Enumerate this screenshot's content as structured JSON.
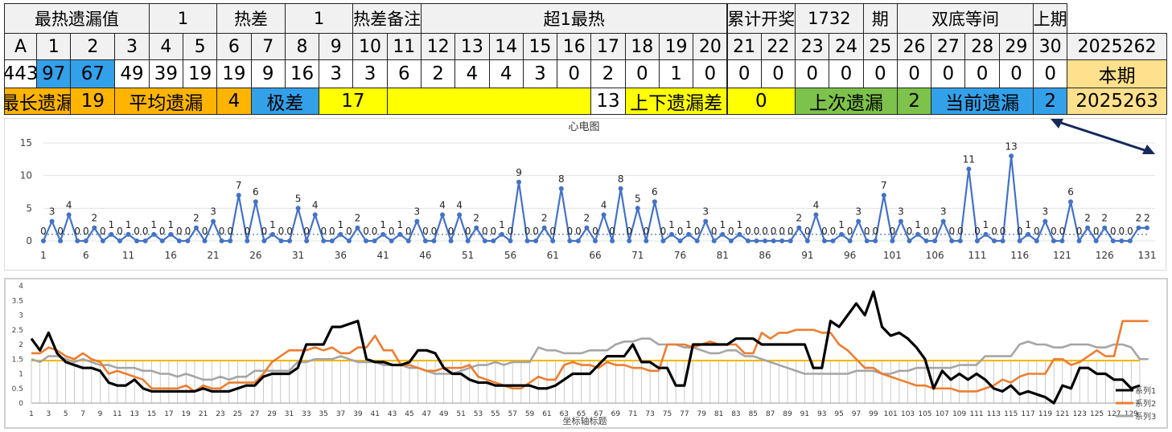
{
  "colors": {
    "blue": "#33a0ea",
    "orange": "#ffb400",
    "yellow": "#ffff00",
    "green": "#7dc24a",
    "cream": "#ffe08c",
    "line": "#4472c4",
    "series1": "#000000",
    "series2": "#ed7d31",
    "series3": "#a5a5a5",
    "avg": "#f2b800"
  },
  "table": {
    "rows": [
      [
        {
          "t": "最热遗漏值",
          "c": 0,
          "s": 5
        },
        {
          "t": "1",
          "c": 5,
          "s": 2
        },
        {
          "t": "热差",
          "c": 7,
          "s": 2
        },
        {
          "t": "1",
          "c": 9,
          "s": 2
        },
        {
          "t": "热差备注",
          "c": 11,
          "s": 2
        },
        {
          "t": "超1最热",
          "c": 13,
          "s": 9
        },
        {
          "t": "累计开奖",
          "c": 22,
          "s": 2
        },
        {
          "t": "1732",
          "c": 24,
          "s": 2
        },
        {
          "t": "期",
          "c": 26,
          "s": 1
        },
        {
          "t": "双底等间",
          "c": 27,
          "s": 4
        },
        {
          "t": "上期",
          "c": 31,
          "s": 1
        }
      ],
      [
        {
          "t": "A",
          "c": 0,
          "s": 1
        },
        {
          "t": "1",
          "c": 1,
          "s": 1
        },
        {
          "t": "2",
          "c": 2,
          "s": 2
        },
        {
          "t": "3",
          "c": 4,
          "s": 1
        },
        {
          "t": "4",
          "c": 5,
          "s": 1
        },
        {
          "t": "5",
          "c": 6,
          "s": 1
        },
        {
          "t": "6",
          "c": 7,
          "s": 1
        },
        {
          "t": "7",
          "c": 8,
          "s": 1
        },
        {
          "t": "8",
          "c": 9,
          "s": 1
        },
        {
          "t": "9",
          "c": 10,
          "s": 1
        },
        {
          "t": "10",
          "c": 11,
          "s": 1
        },
        {
          "t": "11",
          "c": 12,
          "s": 1
        },
        {
          "t": "12",
          "c": 13,
          "s": 1
        },
        {
          "t": "13",
          "c": 14,
          "s": 1
        },
        {
          "t": "14",
          "c": 15,
          "s": 1
        },
        {
          "t": "15",
          "c": 16,
          "s": 1
        },
        {
          "t": "16",
          "c": 17,
          "s": 1
        },
        {
          "t": "17",
          "c": 18,
          "s": 1
        },
        {
          "t": "18",
          "c": 19,
          "s": 1
        },
        {
          "t": "19",
          "c": 20,
          "s": 1
        },
        {
          "t": "20",
          "c": 21,
          "s": 1
        },
        {
          "t": "21",
          "c": 22,
          "s": 1
        },
        {
          "t": "22",
          "c": 23,
          "s": 1
        },
        {
          "t": "23",
          "c": 24,
          "s": 1
        },
        {
          "t": "24",
          "c": 25,
          "s": 1
        },
        {
          "t": "25",
          "c": 26,
          "s": 1
        },
        {
          "t": "26",
          "c": 27,
          "s": 1
        },
        {
          "t": "27",
          "c": 28,
          "s": 1
        },
        {
          "t": "28",
          "c": 29,
          "s": 1
        },
        {
          "t": "29",
          "c": 30,
          "s": 1
        },
        {
          "t": "30",
          "c": 31,
          "s": 1
        },
        {
          "t": "2025262",
          "c": 32,
          "s": 1
        }
      ],
      [
        {
          "t": "443",
          "c": 0,
          "s": 1
        },
        {
          "t": "97",
          "c": 1,
          "s": 1,
          "bg": "blue"
        },
        {
          "t": "67",
          "c": 2,
          "s": 2,
          "bg": "blue"
        },
        {
          "t": "49",
          "c": 4,
          "s": 1
        },
        {
          "t": "39",
          "c": 5,
          "s": 1
        },
        {
          "t": "19",
          "c": 6,
          "s": 1
        },
        {
          "t": "19",
          "c": 7,
          "s": 1
        },
        {
          "t": "9",
          "c": 8,
          "s": 1
        },
        {
          "t": "16",
          "c": 9,
          "s": 1
        },
        {
          "t": "3",
          "c": 10,
          "s": 1
        },
        {
          "t": "3",
          "c": 11,
          "s": 1
        },
        {
          "t": "6",
          "c": 12,
          "s": 1
        },
        {
          "t": "2",
          "c": 13,
          "s": 1
        },
        {
          "t": "4",
          "c": 14,
          "s": 1
        },
        {
          "t": "4",
          "c": 15,
          "s": 1
        },
        {
          "t": "3",
          "c": 16,
          "s": 1
        },
        {
          "t": "0",
          "c": 17,
          "s": 1
        },
        {
          "t": "2",
          "c": 18,
          "s": 1
        },
        {
          "t": "0",
          "c": 19,
          "s": 1
        },
        {
          "t": "1",
          "c": 20,
          "s": 1
        },
        {
          "t": "0",
          "c": 21,
          "s": 1
        },
        {
          "t": "0",
          "c": 22,
          "s": 1
        },
        {
          "t": "0",
          "c": 23,
          "s": 1
        },
        {
          "t": "0",
          "c": 24,
          "s": 1
        },
        {
          "t": "0",
          "c": 25,
          "s": 1
        },
        {
          "t": "0",
          "c": 26,
          "s": 1
        },
        {
          "t": "0",
          "c": 27,
          "s": 1
        },
        {
          "t": "0",
          "c": 28,
          "s": 1
        },
        {
          "t": "0",
          "c": 29,
          "s": 1
        },
        {
          "t": "0",
          "c": 30,
          "s": 1
        },
        {
          "t": "0",
          "c": 31,
          "s": 1
        },
        {
          "t": "本期",
          "c": 32,
          "s": 1,
          "bg": "cream"
        }
      ],
      [
        {
          "t": "最长遗漏",
          "c": 0,
          "s": 2,
          "bg": "orange"
        },
        {
          "t": "19",
          "c": 2,
          "s": 2,
          "bg": "orange"
        },
        {
          "t": "平均遗漏",
          "c": 4,
          "s": 3,
          "bg": "orange"
        },
        {
          "t": "4",
          "c": 7,
          "s": 1,
          "bg": "orange"
        },
        {
          "t": "极差",
          "c": 8,
          "s": 2,
          "bg": "blue"
        },
        {
          "t": "17",
          "c": 10,
          "s": 2,
          "bg": "yellow"
        },
        {
          "t": "",
          "c": 12,
          "s": 6,
          "bg": "yellow"
        },
        {
          "t": "13",
          "c": 18,
          "s": 1
        },
        {
          "t": "上下遗漏差",
          "c": 19,
          "s": 3,
          "bg": "yellow"
        },
        {
          "t": "0",
          "c": 22,
          "s": 2,
          "bg": "yellow"
        },
        {
          "t": "上次遗漏",
          "c": 24,
          "s": 3,
          "bg": "green"
        },
        {
          "t": "2",
          "c": 27,
          "s": 1,
          "bg": "green"
        },
        {
          "t": "当前遗漏",
          "c": 28,
          "s": 3,
          "bg": "blue"
        },
        {
          "t": "2",
          "c": 31,
          "s": 1,
          "bg": "blue"
        },
        {
          "t": "2025263",
          "c": 32,
          "s": 1,
          "bg": "cream"
        }
      ]
    ]
  },
  "chart_data": [
    {
      "type": "line",
      "title": "心电图",
      "ylim": [
        0,
        15
      ],
      "yticks": [
        0,
        5,
        10,
        15
      ],
      "xticks": [
        1,
        6,
        11,
        16,
        21,
        26,
        31,
        36,
        41,
        46,
        51,
        56,
        61,
        66,
        71,
        76,
        81,
        86,
        91,
        96,
        101,
        106,
        111,
        116,
        121,
        126,
        131
      ],
      "values": [
        0,
        3,
        0,
        4,
        0,
        0,
        2,
        0,
        1,
        0,
        1,
        0,
        0,
        1,
        0,
        1,
        0,
        0,
        2,
        0,
        3,
        0,
        0,
        7,
        0,
        6,
        0,
        1,
        0,
        0,
        5,
        0,
        4,
        0,
        0,
        1,
        0,
        2,
        0,
        0,
        1,
        0,
        1,
        0,
        3,
        0,
        0,
        4,
        0,
        4,
        0,
        2,
        0,
        0,
        1,
        0,
        9,
        0,
        0,
        2,
        0,
        8,
        0,
        0,
        2,
        0,
        4,
        0,
        8,
        0,
        5,
        0,
        6,
        0,
        1,
        0,
        1,
        0,
        3,
        0,
        1,
        0,
        1,
        0,
        0,
        0,
        0,
        0,
        0,
        2,
        0,
        4,
        0,
        0,
        1,
        0,
        3,
        0,
        0,
        7,
        0,
        3,
        0,
        1,
        0,
        0,
        3,
        0,
        0,
        11,
        0,
        1,
        0,
        0,
        13,
        0,
        1,
        0,
        3,
        0,
        0,
        6,
        0,
        2,
        0,
        2,
        0,
        0,
        0,
        2,
        2
      ],
      "avg": 1
    },
    {
      "type": "line",
      "xlabel": "坐标轴标题",
      "ylim": [
        0,
        4
      ],
      "yticks": [
        0,
        0.5,
        1,
        1.5,
        2,
        2.5,
        3,
        3.5,
        4
      ],
      "xticks": [
        1,
        3,
        5,
        7,
        9,
        11,
        13,
        15,
        17,
        19,
        21,
        23,
        25,
        27,
        29,
        31,
        33,
        35,
        37,
        39,
        41,
        43,
        45,
        47,
        49,
        51,
        53,
        55,
        57,
        59,
        61,
        63,
        65,
        67,
        69,
        71,
        73,
        75,
        77,
        79,
        81,
        83,
        85,
        87,
        89,
        91,
        93,
        95,
        97,
        99,
        101,
        103,
        105,
        107,
        109,
        111,
        113,
        115,
        117,
        119,
        121,
        123,
        125,
        127,
        129
      ],
      "avg": 1.45,
      "series": [
        {
          "name": "系列1",
          "values": [
            2.2,
            1.8,
            2.4,
            1.7,
            1.4,
            1.3,
            1.2,
            1.2,
            1.1,
            0.7,
            0.6,
            0.6,
            0.8,
            0.5,
            0.4,
            0.4,
            0.4,
            0.4,
            0.4,
            0.4,
            0.5,
            0.4,
            0.4,
            0.4,
            0.5,
            0.6,
            0.6,
            0.9,
            1.0,
            1.0,
            1.0,
            1.2,
            2.0,
            2.0,
            2.0,
            2.6,
            2.6,
            2.7,
            2.8,
            1.5,
            1.4,
            1.4,
            1.3,
            1.3,
            1.4,
            1.8,
            1.8,
            1.7,
            1.2,
            1.0,
            1.0,
            0.8,
            0.7,
            0.7,
            0.6,
            0.6,
            0.6,
            0.6,
            0.6,
            0.5,
            0.5,
            0.6,
            0.8,
            1.0,
            1.0,
            1.0,
            1.3,
            1.6,
            1.6,
            1.6,
            2.0,
            1.4,
            1.4,
            1.2,
            1.2,
            0.6,
            0.6,
            2.0,
            2.0,
            2.0,
            2.0,
            2.0,
            2.2,
            2.2,
            2.2,
            2.0,
            2.0,
            2.0,
            2.0,
            2.0,
            2.0,
            1.2,
            1.2,
            2.8,
            2.6,
            3.0,
            3.4,
            3.0,
            3.8,
            2.6,
            2.3,
            2.4,
            2.2,
            1.9,
            1.5,
            0.5,
            1.1,
            0.8,
            1.0,
            0.8,
            1.0,
            0.8,
            0.5,
            0.4,
            0.6,
            0.3,
            0.4,
            0.3,
            0.2,
            0.0,
            0.6,
            0.5,
            1.2,
            1.2,
            1.0,
            1.0,
            0.8,
            0.8,
            0.5,
            0.6
          ],
          "note": ""
        },
        {
          "name": "系列2",
          "values": [
            1.7,
            1.7,
            1.9,
            1.8,
            1.6,
            1.5,
            1.7,
            1.5,
            1.4,
            1.0,
            1.1,
            1.0,
            0.9,
            0.8,
            0.5,
            0.5,
            0.5,
            0.5,
            0.6,
            0.4,
            0.6,
            0.5,
            0.5,
            0.7,
            0.7,
            0.7,
            0.7,
            1.0,
            1.4,
            1.6,
            1.8,
            1.8,
            1.8,
            1.9,
            1.8,
            1.9,
            1.7,
            1.7,
            1.9,
            1.9,
            2.3,
            1.8,
            1.8,
            1.3,
            1.3,
            1.2,
            1.1,
            1.1,
            1.2,
            1.2,
            1.2,
            1.3,
            0.9,
            0.8,
            0.7,
            0.6,
            0.5,
            0.5,
            0.7,
            0.9,
            0.8,
            0.8,
            1.3,
            1.4,
            1.3,
            1.3,
            1.2,
            1.4,
            1.3,
            1.3,
            1.2,
            1.2,
            1.1,
            1.1,
            2.0,
            2.0,
            2.0,
            1.9,
            2.0,
            2.1,
            2.0,
            2.0,
            2.0,
            1.7,
            1.7,
            2.4,
            2.2,
            2.4,
            2.4,
            2.5,
            2.5,
            2.5,
            2.4,
            2.4,
            2.0,
            1.8,
            1.5,
            1.2,
            1.2,
            1.0,
            0.9,
            0.8,
            0.7,
            0.6,
            0.6,
            0.5,
            0.5,
            0.5,
            0.4,
            0.4,
            0.4,
            0.5,
            0.6,
            0.8,
            0.7,
            0.9,
            1.0,
            1.0,
            1.0,
            1.5,
            1.5,
            1.3,
            1.4,
            1.6,
            1.8,
            1.6,
            1.6,
            2.8,
            2.8,
            2.8,
            2.8
          ],
          "note": ""
        },
        {
          "name": "系列3",
          "values": [
            1.5,
            1.4,
            1.6,
            1.6,
            1.5,
            1.4,
            1.5,
            1.4,
            1.3,
            1.3,
            1.2,
            1.2,
            1.2,
            1.1,
            1.1,
            1.0,
            1.0,
            0.9,
            1.0,
            0.9,
            0.8,
            0.8,
            0.9,
            0.8,
            0.9,
            0.9,
            1.1,
            1.1,
            1.1,
            1.1,
            1.1,
            1.4,
            1.4,
            1.5,
            1.5,
            1.5,
            1.6,
            1.5,
            1.4,
            1.4,
            1.4,
            1.3,
            1.3,
            1.3,
            1.2,
            1.2,
            1.1,
            1.0,
            1.0,
            1.0,
            1.1,
            1.2,
            1.3,
            1.3,
            1.4,
            1.3,
            1.4,
            1.4,
            1.4,
            1.9,
            1.8,
            1.8,
            1.7,
            1.7,
            1.7,
            1.8,
            1.8,
            1.8,
            2.0,
            2.1,
            2.1,
            2.2,
            2.2,
            2.0,
            2.0,
            2.0,
            1.9,
            1.9,
            1.8,
            1.7,
            1.7,
            1.8,
            1.8,
            1.6,
            1.6,
            1.5,
            1.4,
            1.3,
            1.2,
            1.1,
            1.0,
            1.0,
            1.0,
            1.0,
            1.0,
            1.0,
            1.1,
            1.1,
            1.1,
            1.0,
            1.0,
            1.1,
            1.1,
            1.2,
            1.2,
            1.2,
            1.2,
            1.2,
            1.3,
            1.3,
            1.3,
            1.6,
            1.6,
            1.6,
            1.6,
            2.0,
            2.1,
            2.0,
            2.0,
            1.9,
            1.9,
            2.0,
            2.0,
            2.0,
            1.9,
            1.9,
            2.0,
            2.0,
            1.9,
            1.5,
            1.5
          ],
          "note": ""
        }
      ]
    }
  ]
}
